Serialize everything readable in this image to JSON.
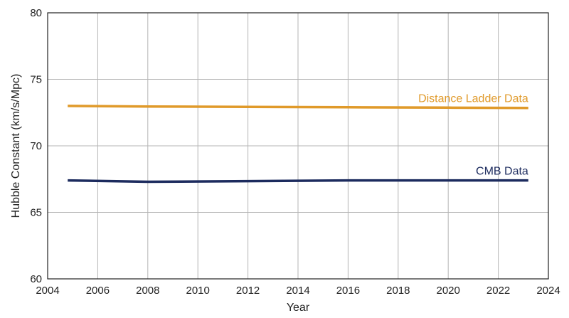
{
  "chart_data": {
    "type": "line",
    "title": "",
    "xlabel": "Year",
    "ylabel": "Hubble Constant (km/s/Mpc)",
    "xlim": [
      2004,
      2024
    ],
    "ylim": [
      60,
      80
    ],
    "xticks": [
      2004,
      2006,
      2008,
      2010,
      2012,
      2014,
      2016,
      2018,
      2020,
      2022,
      2024
    ],
    "yticks": [
      60,
      65,
      70,
      75,
      80
    ],
    "grid": true,
    "series": [
      {
        "name": "Distance Ladder Data",
        "color": "#E09A2A",
        "x": [
          2004.8,
          2008,
          2012,
          2016,
          2020,
          2023.2
        ],
        "y": [
          73.0,
          72.95,
          72.93,
          72.9,
          72.87,
          72.85
        ]
      },
      {
        "name": "CMB Data",
        "color": "#1C2B5E",
        "x": [
          2004.8,
          2008,
          2012,
          2016,
          2020,
          2023.2
        ],
        "y": [
          67.4,
          67.3,
          67.35,
          67.4,
          67.4,
          67.4
        ]
      }
    ]
  }
}
